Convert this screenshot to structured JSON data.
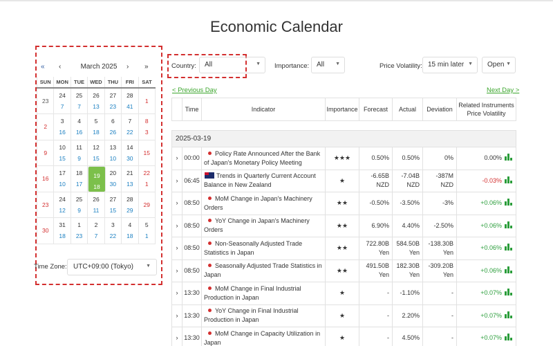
{
  "page": {
    "title": "Economic Calendar"
  },
  "calendar": {
    "prev_year": "«",
    "prev_month": "‹",
    "month_label": "March 2025",
    "next_month": "›",
    "next_year": "»",
    "weekdays": [
      "SUN",
      "MON",
      "TUE",
      "WED",
      "THU",
      "FRI",
      "SAT"
    ],
    "weeks": [
      [
        {
          "day": "23",
          "events": ""
        },
        {
          "day": "24",
          "events": "7"
        },
        {
          "day": "25",
          "events": "7"
        },
        {
          "day": "26",
          "events": "13"
        },
        {
          "day": "27",
          "events": "23"
        },
        {
          "day": "28",
          "events": "41"
        },
        {
          "day": "1",
          "events": ""
        }
      ],
      [
        {
          "day": "2",
          "events": ""
        },
        {
          "day": "3",
          "events": "16"
        },
        {
          "day": "4",
          "events": "16"
        },
        {
          "day": "5",
          "events": "18"
        },
        {
          "day": "6",
          "events": "26"
        },
        {
          "day": "7",
          "events": "22"
        },
        {
          "day": "8",
          "events": "3"
        }
      ],
      [
        {
          "day": "9",
          "events": ""
        },
        {
          "day": "10",
          "events": "15"
        },
        {
          "day": "11",
          "events": "9"
        },
        {
          "day": "12",
          "events": "15"
        },
        {
          "day": "13",
          "events": "10"
        },
        {
          "day": "14",
          "events": "30"
        },
        {
          "day": "15",
          "events": ""
        }
      ],
      [
        {
          "day": "16",
          "events": ""
        },
        {
          "day": "17",
          "events": "10"
        },
        {
          "day": "18",
          "events": "17"
        },
        {
          "day": "19",
          "events": "18"
        },
        {
          "day": "20",
          "events": "30"
        },
        {
          "day": "21",
          "events": "13"
        },
        {
          "day": "22",
          "events": "1"
        }
      ],
      [
        {
          "day": "23",
          "events": ""
        },
        {
          "day": "24",
          "events": "12"
        },
        {
          "day": "25",
          "events": "9"
        },
        {
          "day": "26",
          "events": "11"
        },
        {
          "day": "27",
          "events": "15"
        },
        {
          "day": "28",
          "events": "29"
        },
        {
          "day": "29",
          "events": ""
        }
      ],
      [
        {
          "day": "30",
          "events": ""
        },
        {
          "day": "31",
          "events": "18"
        },
        {
          "day": "1",
          "events": "23"
        },
        {
          "day": "2",
          "events": "7"
        },
        {
          "day": "3",
          "events": "22"
        },
        {
          "day": "4",
          "events": "18"
        },
        {
          "day": "5",
          "events": "1"
        }
      ]
    ],
    "selected_day": "19",
    "timezone_label": "Time Zone:",
    "timezone_value": "UTC+09:00 (Tokyo)"
  },
  "filters": {
    "country_label": "Country:",
    "country_value": "All",
    "importance_label": "Importance:",
    "importance_value": "All",
    "volatility_label": "Price Volatility:",
    "volatility_value": "15 min later",
    "status_value": "Open"
  },
  "nav": {
    "prev_day": "< Previous Day",
    "next_day": "Next Day >"
  },
  "table": {
    "headers": {
      "time": "Time",
      "indicator": "Indicator",
      "importance": "Importance",
      "forecast": "Forecast",
      "actual": "Actual",
      "deviation": "Deviation",
      "related": "Related Instruments Price Volatility"
    },
    "date": "2025-03-19",
    "rows": [
      {
        "time": "00:00",
        "indicator": "Policy Rate Announced After the Bank of Japan's Monetary Policy Meeting",
        "stars": "★★★",
        "forecast": "0.50%",
        "actual": "0.50%",
        "deviation": "0%",
        "volatility": "0.00%",
        "flag": "dot"
      },
      {
        "time": "06:45",
        "indicator": "Trends in Quarterly Current Account Balance in New Zealand",
        "stars": "★",
        "forecast": "-6.65B NZD",
        "actual": "-7.04B NZD",
        "deviation": "-387M NZD",
        "volatility": "-0.03%",
        "flag": "nz"
      },
      {
        "time": "08:50",
        "indicator": "MoM Change in Japan's Machinery Orders",
        "stars": "★★",
        "forecast": "-0.50%",
        "actual": "-3.50%",
        "deviation": "-3%",
        "volatility": "+0.06%",
        "flag": "dot"
      },
      {
        "time": "08:50",
        "indicator": "YoY Change in Japan's Machinery Orders",
        "stars": "★★",
        "forecast": "6.90%",
        "actual": "4.40%",
        "deviation": "-2.50%",
        "volatility": "+0.06%",
        "flag": "dot"
      },
      {
        "time": "08:50",
        "indicator": "Non-Seasonally Adjusted Trade Statistics in Japan",
        "stars": "★★",
        "forecast": "722.80B Yen",
        "actual": "584.50B Yen",
        "deviation": "-138.30B Yen",
        "volatility": "+0.06%",
        "flag": "dot"
      },
      {
        "time": "08:50",
        "indicator": "Seasonally Adjusted Trade Statistics in Japan",
        "stars": "★★",
        "forecast": "491.50B Yen",
        "actual": "182.30B Yen",
        "deviation": "-309.20B Yen",
        "volatility": "+0.06%",
        "flag": "dot"
      },
      {
        "time": "13:30",
        "indicator": "MoM Change in Final Industrial Production in Japan",
        "stars": "★",
        "forecast": "-",
        "actual": "-1.10%",
        "deviation": "-",
        "volatility": "+0.07%",
        "flag": "dot"
      },
      {
        "time": "13:30",
        "indicator": "YoY Change in Final Industrial Production in Japan",
        "stars": "★",
        "forecast": "-",
        "actual": "2.20%",
        "deviation": "-",
        "volatility": "+0.07%",
        "flag": "dot"
      },
      {
        "time": "13:30",
        "indicator": "MoM Change in Capacity Utilization in Japan",
        "stars": "★",
        "forecast": "-",
        "actual": "4.50%",
        "deviation": "-",
        "volatility": "+0.07%",
        "flag": "dot"
      }
    ]
  },
  "colors": {
    "accent_green": "#7cc04b",
    "negative": "#d32f2f",
    "positive": "#2a9d3a",
    "star": "#f2a60c"
  }
}
